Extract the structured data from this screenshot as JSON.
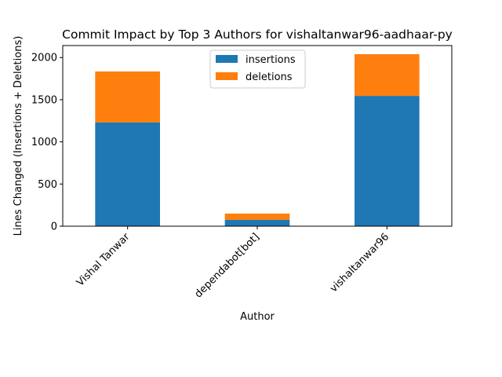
{
  "chart_data": {
    "type": "bar",
    "stacked": true,
    "title": "Commit Impact by Top 3 Authors for vishaltanwar96-aadhaar-py",
    "xlabel": "Author",
    "ylabel": "Lines Changed (Insertions + Deletions)",
    "categories": [
      "Vishal Tanwar",
      "dependabot[bot]",
      "vishaltanwar96"
    ],
    "series": [
      {
        "name": "insertions",
        "color": "#1f77b4",
        "values": [
          1230,
          75,
          1545
        ]
      },
      {
        "name": "deletions",
        "color": "#ff7f0e",
        "values": [
          605,
          75,
          495
        ]
      }
    ],
    "ylim": [
      0,
      2142
    ],
    "yticks": [
      0,
      500,
      1000,
      1500,
      2000
    ],
    "grid": false,
    "legend_position": "upper center"
  }
}
